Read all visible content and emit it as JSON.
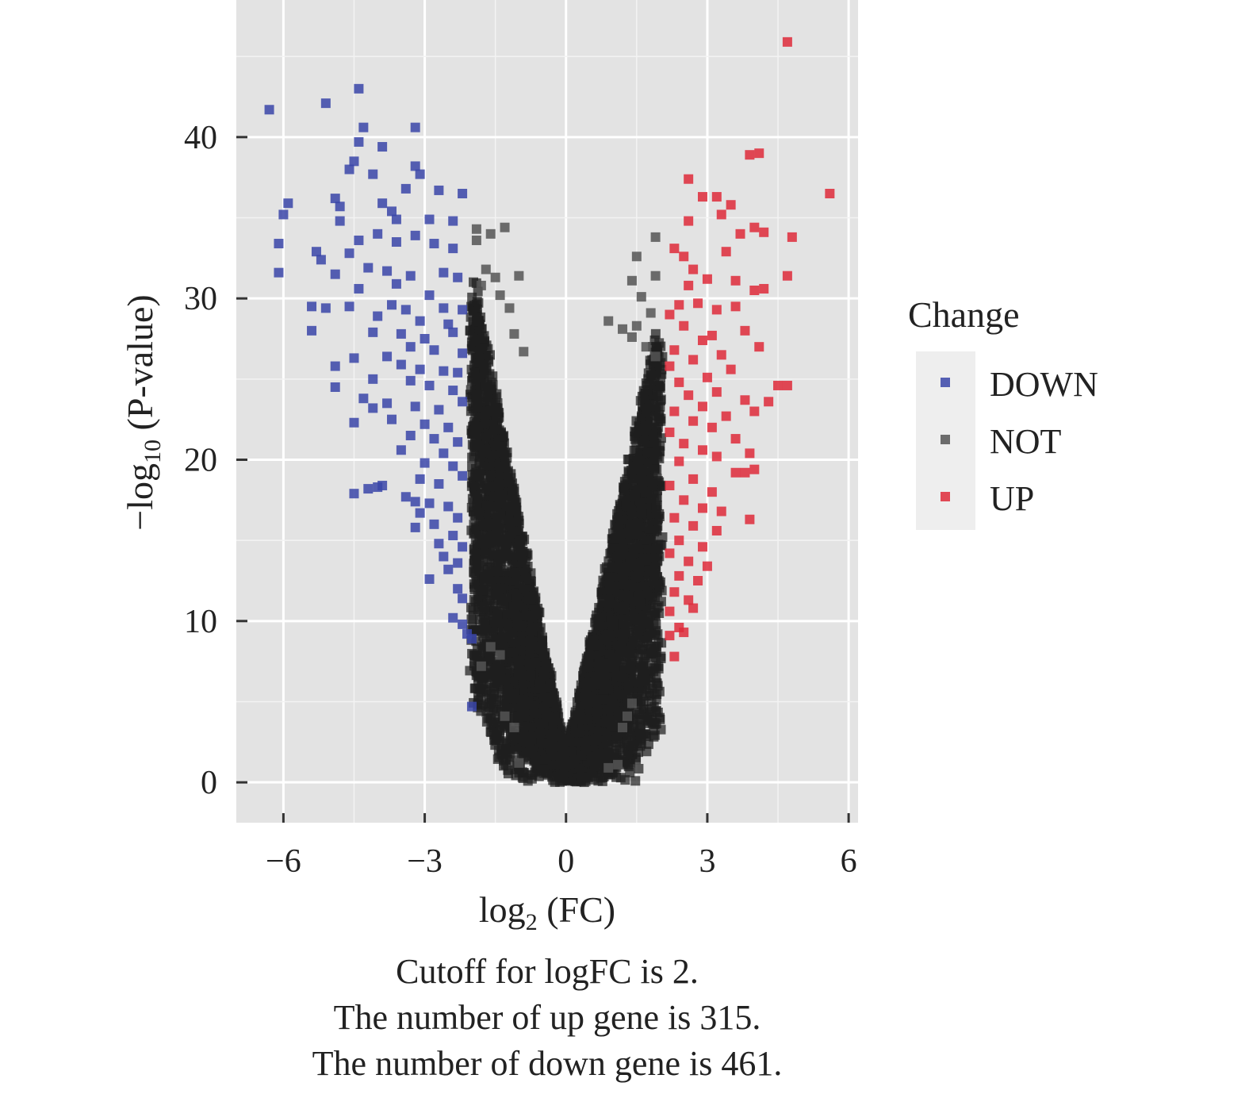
{
  "chart_data": {
    "type": "scatter",
    "title": "",
    "xlabel_base": "log",
    "xlabel_sub": "2",
    "xlabel_rest": " (FC)",
    "ylabel_prefix": "−log",
    "ylabel_sub": "10",
    "ylabel_rest": " (P-value)",
    "xlim": [
      -7.0,
      6.2
    ],
    "ylim": [
      -2.5,
      48.5
    ],
    "x_ticks": [
      -6,
      -3,
      0,
      3,
      6
    ],
    "x_tick_labels": [
      "−6",
      "−3",
      "0",
      "3",
      "6"
    ],
    "y_ticks": [
      0,
      10,
      20,
      30,
      40
    ],
    "y_tick_labels": [
      "0",
      "10",
      "20",
      "30",
      "40"
    ],
    "grid": true,
    "legend": {
      "title": "Change",
      "position": "right",
      "entries": [
        {
          "label": "DOWN",
          "color": "#3a45a8"
        },
        {
          "label": "NOT",
          "color": "#555555"
        },
        {
          "label": "UP",
          "color": "#de2a3a"
        }
      ]
    },
    "cutoff_logfc": 2,
    "series": [
      {
        "name": "DOWN",
        "color": "#3a45a8",
        "points": [
          [
            -6.3,
            41.7
          ],
          [
            -5.1,
            42.1
          ],
          [
            -4.4,
            43.0
          ],
          [
            -4.3,
            40.6
          ],
          [
            -3.2,
            40.6
          ],
          [
            -4.4,
            39.7
          ],
          [
            -3.9,
            39.4
          ],
          [
            -4.5,
            38.5
          ],
          [
            -4.6,
            38.0
          ],
          [
            -4.1,
            37.7
          ],
          [
            -3.2,
            38.2
          ],
          [
            -3.1,
            37.7
          ],
          [
            -3.4,
            36.8
          ],
          [
            -2.7,
            36.7
          ],
          [
            -2.2,
            36.5
          ],
          [
            -5.9,
            35.9
          ],
          [
            -6.0,
            35.2
          ],
          [
            -4.9,
            36.2
          ],
          [
            -4.8,
            35.7
          ],
          [
            -3.9,
            35.9
          ],
          [
            -3.7,
            35.4
          ],
          [
            -3.6,
            34.9
          ],
          [
            -2.9,
            34.9
          ],
          [
            -2.4,
            34.8
          ],
          [
            -4.8,
            34.8
          ],
          [
            -6.1,
            33.4
          ],
          [
            -5.3,
            32.9
          ],
          [
            -5.2,
            32.4
          ],
          [
            -4.4,
            33.6
          ],
          [
            -4.0,
            34.0
          ],
          [
            -3.2,
            33.9
          ],
          [
            -3.6,
            33.5
          ],
          [
            -2.8,
            33.4
          ],
          [
            -2.4,
            33.1
          ],
          [
            -4.6,
            32.8
          ],
          [
            -6.1,
            31.6
          ],
          [
            -4.9,
            31.5
          ],
          [
            -4.2,
            31.9
          ],
          [
            -3.8,
            31.7
          ],
          [
            -3.3,
            31.4
          ],
          [
            -2.6,
            31.6
          ],
          [
            -2.3,
            31.3
          ],
          [
            -3.6,
            30.9
          ],
          [
            -4.4,
            30.6
          ],
          [
            -2.9,
            30.2
          ],
          [
            -5.4,
            29.5
          ],
          [
            -5.1,
            29.4
          ],
          [
            -4.6,
            29.5
          ],
          [
            -3.7,
            29.6
          ],
          [
            -3.4,
            29.3
          ],
          [
            -2.6,
            29.4
          ],
          [
            -2.2,
            29.3
          ],
          [
            -3.1,
            28.6
          ],
          [
            -2.5,
            28.4
          ],
          [
            -4.0,
            28.9
          ],
          [
            -5.4,
            28.0
          ],
          [
            -4.1,
            27.9
          ],
          [
            -3.5,
            27.8
          ],
          [
            -3.0,
            27.5
          ],
          [
            -2.4,
            27.9
          ],
          [
            -3.3,
            27.0
          ],
          [
            -2.8,
            26.8
          ],
          [
            -2.2,
            26.6
          ],
          [
            -4.5,
            26.3
          ],
          [
            -3.8,
            26.4
          ],
          [
            -4.9,
            25.8
          ],
          [
            -3.5,
            25.9
          ],
          [
            -3.1,
            25.6
          ],
          [
            -2.6,
            25.5
          ],
          [
            -2.3,
            25.4
          ],
          [
            -4.1,
            25.0
          ],
          [
            -3.3,
            24.9
          ],
          [
            -2.9,
            24.6
          ],
          [
            -2.4,
            24.3
          ],
          [
            -4.9,
            24.5
          ],
          [
            -4.3,
            23.8
          ],
          [
            -3.8,
            23.5
          ],
          [
            -3.2,
            23.3
          ],
          [
            -2.7,
            23.1
          ],
          [
            -2.2,
            23.6
          ],
          [
            -4.1,
            23.2
          ],
          [
            -3.7,
            22.5
          ],
          [
            -3.0,
            22.2
          ],
          [
            -2.5,
            22.0
          ],
          [
            -4.5,
            22.3
          ],
          [
            -3.3,
            21.5
          ],
          [
            -2.8,
            21.3
          ],
          [
            -2.3,
            21.1
          ],
          [
            -3.5,
            20.6
          ],
          [
            -2.6,
            20.4
          ],
          [
            -3.0,
            19.8
          ],
          [
            -2.4,
            19.6
          ],
          [
            -2.2,
            19.0
          ],
          [
            -3.1,
            18.8
          ],
          [
            -2.7,
            18.5
          ],
          [
            -3.9,
            18.4
          ],
          [
            -4.0,
            18.3
          ],
          [
            -4.2,
            18.2
          ],
          [
            -4.5,
            17.9
          ],
          [
            -3.4,
            17.7
          ],
          [
            -3.2,
            17.4
          ],
          [
            -2.9,
            17.3
          ],
          [
            -2.5,
            17.1
          ],
          [
            -3.1,
            16.7
          ],
          [
            -2.3,
            16.4
          ],
          [
            -2.8,
            16.0
          ],
          [
            -3.2,
            15.8
          ],
          [
            -2.4,
            15.3
          ],
          [
            -2.7,
            14.8
          ],
          [
            -2.2,
            14.6
          ],
          [
            -2.6,
            14.0
          ],
          [
            -2.3,
            13.6
          ],
          [
            -2.5,
            13.2
          ],
          [
            -2.9,
            12.6
          ],
          [
            -2.3,
            12.0
          ],
          [
            -2.2,
            11.4
          ],
          [
            -2.4,
            10.2
          ],
          [
            -2.2,
            9.8
          ],
          [
            -2.1,
            9.2
          ],
          [
            -2.0,
            8.9
          ],
          [
            -2.0,
            4.7
          ]
        ]
      },
      {
        "name": "NOT_OUTLIERS",
        "color": "#555555",
        "points": [
          [
            -1.9,
            34.3
          ],
          [
            -1.6,
            34.0
          ],
          [
            -1.3,
            34.4
          ],
          [
            -1.9,
            33.6
          ],
          [
            -1.7,
            31.8
          ],
          [
            -1.5,
            31.3
          ],
          [
            -1.0,
            31.4
          ],
          [
            -1.8,
            30.8
          ],
          [
            -1.4,
            30.2
          ],
          [
            -1.2,
            29.4
          ],
          [
            1.5,
            32.6
          ],
          [
            1.9,
            33.8
          ],
          [
            1.4,
            31.1
          ],
          [
            1.9,
            31.4
          ],
          [
            1.6,
            30.1
          ],
          [
            0.9,
            28.6
          ],
          [
            1.2,
            28.1
          ],
          [
            1.5,
            28.3
          ],
          [
            1.8,
            29.1
          ],
          [
            1.4,
            27.6
          ],
          [
            -1.1,
            27.8
          ],
          [
            -0.9,
            26.7
          ],
          [
            1.7,
            27.0
          ],
          [
            1.9,
            26.4
          ],
          [
            -1.6,
            8.4
          ],
          [
            -1.8,
            7.2
          ],
          [
            -1.4,
            7.9
          ],
          [
            -1.3,
            4.1
          ],
          [
            -1.1,
            3.4
          ],
          [
            1.4,
            4.9
          ],
          [
            1.3,
            4.1
          ],
          [
            1.2,
            3.4
          ],
          [
            -1.0,
            1.2
          ],
          [
            1.1,
            1.1
          ],
          [
            0.9,
            0.9
          ]
        ]
      },
      {
        "name": "UP",
        "color": "#de2a3a",
        "points": [
          [
            4.7,
            45.9
          ],
          [
            3.9,
            38.9
          ],
          [
            4.1,
            39.0
          ],
          [
            2.6,
            37.4
          ],
          [
            5.6,
            36.5
          ],
          [
            3.2,
            36.3
          ],
          [
            2.9,
            36.3
          ],
          [
            3.5,
            35.8
          ],
          [
            3.3,
            35.2
          ],
          [
            2.6,
            34.8
          ],
          [
            4.0,
            34.4
          ],
          [
            4.2,
            34.1
          ],
          [
            3.7,
            34.0
          ],
          [
            4.8,
            33.8
          ],
          [
            2.3,
            33.1
          ],
          [
            3.4,
            32.9
          ],
          [
            2.5,
            32.6
          ],
          [
            2.7,
            31.8
          ],
          [
            4.7,
            31.4
          ],
          [
            3.6,
            31.1
          ],
          [
            3.0,
            31.2
          ],
          [
            2.6,
            30.8
          ],
          [
            4.0,
            30.5
          ],
          [
            4.2,
            30.6
          ],
          [
            2.4,
            29.6
          ],
          [
            3.2,
            29.3
          ],
          [
            2.8,
            29.7
          ],
          [
            2.2,
            29.0
          ],
          [
            3.6,
            29.5
          ],
          [
            3.8,
            28.0
          ],
          [
            2.5,
            28.3
          ],
          [
            3.1,
            27.7
          ],
          [
            2.9,
            27.4
          ],
          [
            4.1,
            27.0
          ],
          [
            2.3,
            26.8
          ],
          [
            3.3,
            26.5
          ],
          [
            2.7,
            26.2
          ],
          [
            2.2,
            25.8
          ],
          [
            3.5,
            25.6
          ],
          [
            3.0,
            25.1
          ],
          [
            2.4,
            24.8
          ],
          [
            4.5,
            24.6
          ],
          [
            4.7,
            24.6
          ],
          [
            3.2,
            24.2
          ],
          [
            2.6,
            24.0
          ],
          [
            3.8,
            23.7
          ],
          [
            4.3,
            23.6
          ],
          [
            2.9,
            23.3
          ],
          [
            2.3,
            23.0
          ],
          [
            3.4,
            22.7
          ],
          [
            4.0,
            23.0
          ],
          [
            2.7,
            22.4
          ],
          [
            3.1,
            22.0
          ],
          [
            2.2,
            21.7
          ],
          [
            3.6,
            21.3
          ],
          [
            2.5,
            21.0
          ],
          [
            2.9,
            20.6
          ],
          [
            3.2,
            20.2
          ],
          [
            3.9,
            20.4
          ],
          [
            2.4,
            19.9
          ],
          [
            3.6,
            19.2
          ],
          [
            3.8,
            19.2
          ],
          [
            4.0,
            19.4
          ],
          [
            2.7,
            18.8
          ],
          [
            2.2,
            18.4
          ],
          [
            3.1,
            18.0
          ],
          [
            2.5,
            17.5
          ],
          [
            2.9,
            17.0
          ],
          [
            3.3,
            16.8
          ],
          [
            2.3,
            16.4
          ],
          [
            3.9,
            16.3
          ],
          [
            2.7,
            15.9
          ],
          [
            3.2,
            15.6
          ],
          [
            2.4,
            15.0
          ],
          [
            2.9,
            14.6
          ],
          [
            2.2,
            14.2
          ],
          [
            2.6,
            13.7
          ],
          [
            3.0,
            13.4
          ],
          [
            2.4,
            12.8
          ],
          [
            2.8,
            12.5
          ],
          [
            2.3,
            11.8
          ],
          [
            2.6,
            11.3
          ],
          [
            2.2,
            10.6
          ],
          [
            2.7,
            10.8
          ],
          [
            2.4,
            9.6
          ],
          [
            2.2,
            9.1
          ],
          [
            2.5,
            9.3
          ],
          [
            2.3,
            7.8
          ]
        ]
      }
    ],
    "not_cloud": {
      "name": "NOT",
      "color": "#1e1e1e",
      "x_range": [
        -2,
        2
      ],
      "count": 5200
    }
  },
  "caption": {
    "line1": "Cutoff for logFC is 2.",
    "line2": "The number of up gene is 315.",
    "line3": "The number of down gene is 461."
  }
}
